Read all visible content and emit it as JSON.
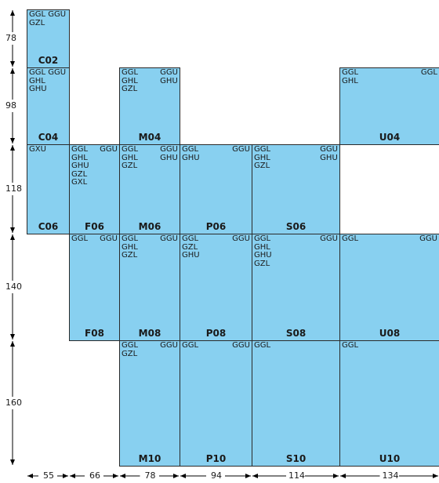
{
  "row_heights": [
    {
      "label": "78"
    },
    {
      "label": "98"
    },
    {
      "label": "118"
    },
    {
      "label": "140"
    },
    {
      "label": "160"
    }
  ],
  "column_widths": [
    {
      "label": "55"
    },
    {
      "label": "66"
    },
    {
      "label": "78"
    },
    {
      "label": "94"
    },
    {
      "label": "114"
    },
    {
      "label": "134"
    }
  ],
  "cells": [
    {
      "id": "C02",
      "name": "C02",
      "left": [
        "GGL GGU",
        "GZL"
      ],
      "right": []
    },
    {
      "id": "C04",
      "name": "C04",
      "left": [
        "GGL GGU",
        "GHL",
        "GHU"
      ],
      "right": []
    },
    {
      "id": "M04",
      "name": "M04",
      "left": [
        "GGL",
        "GHL",
        "GZL"
      ],
      "right": [
        "GGU",
        "GHU"
      ]
    },
    {
      "id": "U04",
      "name": "U04",
      "left": [
        "GGL",
        "GHL"
      ],
      "right": [
        "GGL"
      ]
    },
    {
      "id": "C06",
      "name": "C06",
      "left": [
        "GXU"
      ],
      "right": []
    },
    {
      "id": "F06",
      "name": "F06",
      "left": [
        "GGL",
        "GHL",
        "GHU",
        "GZL",
        "GXL"
      ],
      "right": [
        "GGU"
      ]
    },
    {
      "id": "M06",
      "name": "M06",
      "left": [
        "GGL",
        "GHL",
        "GZL"
      ],
      "right": [
        "GGU",
        "GHU"
      ]
    },
    {
      "id": "P06",
      "name": "P06",
      "left": [
        "GGL",
        "GHU"
      ],
      "right": [
        "GGU"
      ]
    },
    {
      "id": "S06",
      "name": "S06",
      "left": [
        "GGL",
        "GHL",
        "GZL"
      ],
      "right": [
        "GGU",
        "GHU"
      ]
    },
    {
      "id": "F08",
      "name": "F08",
      "left": [
        "GGL"
      ],
      "right": [
        "GGU"
      ]
    },
    {
      "id": "M08",
      "name": "M08",
      "left": [
        "GGL",
        "GHL",
        "GZL"
      ],
      "right": [
        "GGU"
      ]
    },
    {
      "id": "P08",
      "name": "P08",
      "left": [
        "GGL",
        "GZL",
        "GHU"
      ],
      "right": [
        "GGU"
      ]
    },
    {
      "id": "S08",
      "name": "S08",
      "left": [
        "GGL",
        "GHL",
        "GHU",
        "GZL"
      ],
      "right": [
        "GGU"
      ]
    },
    {
      "id": "U08",
      "name": "U08",
      "left": [
        "GGL"
      ],
      "right": [
        "GGU"
      ]
    },
    {
      "id": "M10",
      "name": "M10",
      "left": [
        "GGL",
        "GZL"
      ],
      "right": [
        "GGU"
      ]
    },
    {
      "id": "P10",
      "name": "P10",
      "left": [
        "GGL"
      ],
      "right": [
        "GGU"
      ]
    },
    {
      "id": "S10",
      "name": "S10",
      "left": [
        "GGL"
      ],
      "right": []
    },
    {
      "id": "U10",
      "name": "U10",
      "left": [
        "GGL"
      ],
      "right": []
    }
  ]
}
